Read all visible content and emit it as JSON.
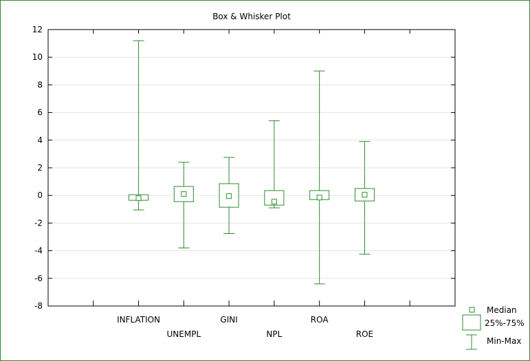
{
  "chart_data": {
    "type": "box",
    "title": "Box & Whisker Plot",
    "xlabel": "",
    "ylabel": "",
    "ylim": [
      -8,
      12
    ],
    "yticks": [
      12,
      10,
      8,
      6,
      4,
      2,
      0,
      -2,
      -4,
      -6,
      -8
    ],
    "grid": true,
    "legend_position": "bottom-right",
    "categories": [
      "INFLATION",
      "UNEMPL",
      "GINI",
      "NPL",
      "ROA",
      "ROE"
    ],
    "boxes": [
      {
        "label": "INFLATION",
        "min": -1.05,
        "q1": -0.35,
        "median": -0.2,
        "q3": 0.05,
        "max": 11.2
      },
      {
        "label": "UNEMPL",
        "min": -3.8,
        "q1": -0.45,
        "median": 0.1,
        "q3": 0.65,
        "max": 2.4
      },
      {
        "label": "GINI",
        "min": -2.75,
        "q1": -0.85,
        "median": -0.05,
        "q3": 0.85,
        "max": 2.75
      },
      {
        "label": "NPL",
        "min": -0.9,
        "q1": -0.7,
        "median": -0.45,
        "q3": 0.35,
        "max": 5.4
      },
      {
        "label": "ROA",
        "min": -6.4,
        "q1": -0.3,
        "median": -0.15,
        "q3": 0.35,
        "max": 9.0
      },
      {
        "label": "ROE",
        "min": -4.25,
        "q1": -0.4,
        "median": 0.05,
        "q3": 0.5,
        "max": 3.9
      }
    ],
    "legend": [
      {
        "symbol": "median",
        "label": "Median"
      },
      {
        "symbol": "box",
        "label": "25%-75%"
      },
      {
        "symbol": "whisker",
        "label": "Min-Max"
      }
    ],
    "colors": {
      "series": "#2e8b2e",
      "grid": "#e3e3e3",
      "axis": "#000000",
      "frame": "#2e8b2e"
    }
  }
}
